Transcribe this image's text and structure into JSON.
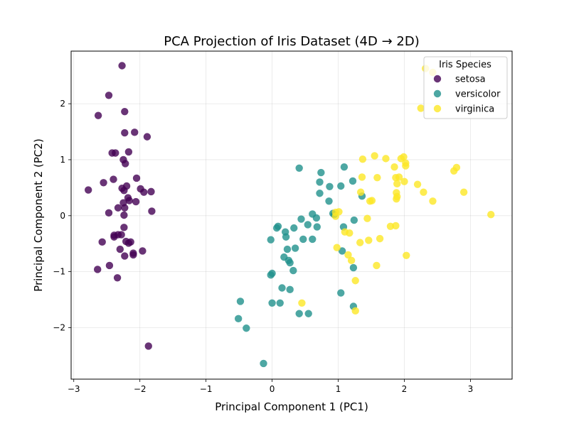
{
  "chart_data": {
    "type": "scatter",
    "title": "PCA Projection of Iris Dataset (4D → 2D)",
    "xlabel": "Principal Component 1 (PC1)",
    "ylabel": "Principal Component 2 (PC2)",
    "xlim": [
      -3.04,
      3.63
    ],
    "ylim": [
      -2.92,
      2.94
    ],
    "xticks": [
      -3,
      -2,
      -1,
      0,
      1,
      2,
      3
    ],
    "yticks": [
      -2,
      -1,
      0,
      1,
      2
    ],
    "xtick_labels": [
      "−3",
      "−2",
      "−1",
      "0",
      "1",
      "2",
      "3"
    ],
    "ytick_labels": [
      "−2",
      "−1",
      "0",
      "1",
      "2"
    ],
    "grid": true,
    "legend": {
      "title": "Iris Species",
      "placement": "top-right"
    },
    "series": [
      {
        "name": "setosa",
        "color": "#440154",
        "points": [
          [
            -2.27,
            2.68
          ],
          [
            -2.47,
            2.15
          ],
          [
            -2.63,
            1.79
          ],
          [
            -2.23,
            1.86
          ],
          [
            -2.23,
            1.48
          ],
          [
            -2.08,
            1.49
          ],
          [
            -1.89,
            1.41
          ],
          [
            -2.42,
            1.12
          ],
          [
            -2.37,
            1.12
          ],
          [
            -2.17,
            1.14
          ],
          [
            -2.25,
            1.0
          ],
          [
            -2.22,
            0.93
          ],
          [
            -2.05,
            0.67
          ],
          [
            -2.4,
            0.65
          ],
          [
            -2.55,
            0.59
          ],
          [
            -2.78,
            0.46
          ],
          [
            -2.27,
            0.49
          ],
          [
            -2.24,
            0.45
          ],
          [
            -2.2,
            0.53
          ],
          [
            -1.99,
            0.48
          ],
          [
            -1.94,
            0.42
          ],
          [
            -1.83,
            0.43
          ],
          [
            -2.18,
            0.32
          ],
          [
            -2.25,
            0.23
          ],
          [
            -2.16,
            0.27
          ],
          [
            -2.06,
            0.25
          ],
          [
            -2.33,
            0.14
          ],
          [
            -2.23,
            0.14
          ],
          [
            -1.82,
            0.08
          ],
          [
            -2.47,
            0.05
          ],
          [
            -2.24,
            0.01
          ],
          [
            -2.24,
            -0.21
          ],
          [
            -2.33,
            -0.34
          ],
          [
            -2.39,
            -0.35
          ],
          [
            -2.39,
            -0.38
          ],
          [
            -2.28,
            -0.34
          ],
          [
            -2.57,
            -0.47
          ],
          [
            -2.21,
            -0.46
          ],
          [
            -2.14,
            -0.47
          ],
          [
            -2.17,
            -0.49
          ],
          [
            -2.3,
            -0.6
          ],
          [
            -1.96,
            -0.63
          ],
          [
            -2.1,
            -0.67
          ],
          [
            -2.1,
            -0.7
          ],
          [
            -2.23,
            -0.72
          ],
          [
            -2.46,
            -0.89
          ],
          [
            -2.64,
            -0.96
          ],
          [
            -2.34,
            -1.11
          ],
          [
            -1.87,
            -2.33
          ]
        ]
      },
      {
        "name": "versicolor",
        "color": "#21918c",
        "points": [
          [
            0.41,
            0.85
          ],
          [
            0.74,
            0.77
          ],
          [
            1.09,
            0.87
          ],
          [
            0.72,
            0.6
          ],
          [
            0.87,
            0.52
          ],
          [
            1.04,
            0.53
          ],
          [
            1.22,
            0.62
          ],
          [
            0.72,
            0.4
          ],
          [
            1.36,
            0.35
          ],
          [
            0.86,
            0.26
          ],
          [
            0.61,
            0.03
          ],
          [
            0.92,
            0.04
          ],
          [
            0.94,
            0.02
          ],
          [
            0.44,
            -0.06
          ],
          [
            0.67,
            -0.04
          ],
          [
            0.54,
            -0.16
          ],
          [
            0.09,
            -0.19
          ],
          [
            0.07,
            -0.22
          ],
          [
            0.33,
            -0.22
          ],
          [
            0.68,
            -0.2
          ],
          [
            1.08,
            -0.2
          ],
          [
            1.24,
            -0.08
          ],
          [
            0.2,
            -0.29
          ],
          [
            0.21,
            -0.38
          ],
          [
            -0.02,
            -0.43
          ],
          [
            0.47,
            -0.42
          ],
          [
            0.61,
            -0.42
          ],
          [
            0.35,
            -0.58
          ],
          [
            0.23,
            -0.6
          ],
          [
            0.18,
            -0.74
          ],
          [
            0.25,
            -0.8
          ],
          [
            0.27,
            -0.84
          ],
          [
            1.06,
            -0.63
          ],
          [
            1.23,
            -0.93
          ],
          [
            0.32,
            -0.98
          ],
          [
            0.0,
            -1.03
          ],
          [
            -0.02,
            -1.06
          ],
          [
            0.15,
            -1.29
          ],
          [
            0.27,
            -1.32
          ],
          [
            1.04,
            -1.38
          ],
          [
            0.0,
            -1.56
          ],
          [
            0.12,
            -1.56
          ],
          [
            0.41,
            -1.75
          ],
          [
            0.55,
            -1.75
          ],
          [
            1.23,
            -1.62
          ],
          [
            -0.48,
            -1.53
          ],
          [
            -0.51,
            -1.84
          ],
          [
            -0.39,
            -2.01
          ],
          [
            -0.13,
            -2.64
          ]
        ]
      },
      {
        "name": "virginica",
        "color": "#fde725",
        "points": [
          [
            2.32,
            2.63
          ],
          [
            2.43,
            2.56
          ],
          [
            2.25,
            1.92
          ],
          [
            1.37,
            1.01
          ],
          [
            1.55,
            1.07
          ],
          [
            1.72,
            1.02
          ],
          [
            1.95,
            1.02
          ],
          [
            1.99,
            1.05
          ],
          [
            2.02,
            0.94
          ],
          [
            2.02,
            0.89
          ],
          [
            1.85,
            0.87
          ],
          [
            2.79,
            0.86
          ],
          [
            2.75,
            0.8
          ],
          [
            1.36,
            0.69
          ],
          [
            1.59,
            0.68
          ],
          [
            1.87,
            0.68
          ],
          [
            1.92,
            0.69
          ],
          [
            2.0,
            0.61
          ],
          [
            2.2,
            0.56
          ],
          [
            1.89,
            0.57
          ],
          [
            2.29,
            0.42
          ],
          [
            2.9,
            0.42
          ],
          [
            1.34,
            0.42
          ],
          [
            1.88,
            0.41
          ],
          [
            1.89,
            0.34
          ],
          [
            1.88,
            0.3
          ],
          [
            1.48,
            0.26
          ],
          [
            1.51,
            0.27
          ],
          [
            2.43,
            0.26
          ],
          [
            3.31,
            0.02
          ],
          [
            0.96,
            0.06
          ],
          [
            1.01,
            0.07
          ],
          [
            0.96,
            -0.01
          ],
          [
            1.44,
            -0.05
          ],
          [
            1.79,
            -0.19
          ],
          [
            1.87,
            -0.18
          ],
          [
            1.1,
            -0.29
          ],
          [
            1.17,
            -0.31
          ],
          [
            1.63,
            -0.41
          ],
          [
            1.33,
            -0.48
          ],
          [
            1.46,
            -0.44
          ],
          [
            0.98,
            -0.57
          ],
          [
            1.15,
            -0.7
          ],
          [
            1.2,
            -0.8
          ],
          [
            2.03,
            -0.71
          ],
          [
            1.58,
            -0.89
          ],
          [
            1.26,
            -1.16
          ],
          [
            0.45,
            -1.56
          ],
          [
            1.26,
            -1.7
          ]
        ]
      }
    ]
  }
}
